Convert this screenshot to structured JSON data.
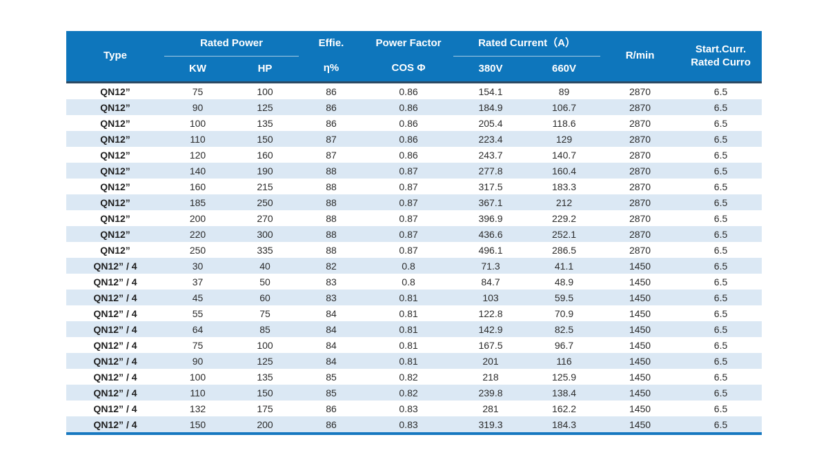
{
  "colors": {
    "header_bg": "#0e76bc",
    "header_text": "#ffffff",
    "row_stripe": "#dbe8f4",
    "header_bottom_rule": "#2d4a63",
    "table_bottom_rule": "#1778c0",
    "body_text": "#2b2b2b"
  },
  "table": {
    "header": {
      "type": "Type",
      "rated_power": "Rated Power",
      "kw": "KW",
      "hp": "HP",
      "effie": "Effie.",
      "eta": "η%",
      "power_factor": "Power Factor",
      "cos_phi": "COS Φ",
      "rated_current": "Rated Current（A）",
      "v380": "380V",
      "v660": "660V",
      "rpm": "R/min",
      "start_curr_line1": "Start.Curr.",
      "start_curr_line2": "Rated Curro"
    },
    "rows": [
      [
        "QN12”",
        "75",
        "100",
        "86",
        "0.86",
        "154.1",
        "89",
        "2870",
        "6.5"
      ],
      [
        "QN12”",
        "90",
        "125",
        "86",
        "0.86",
        "184.9",
        "106.7",
        "2870",
        "6.5"
      ],
      [
        "QN12”",
        "100",
        "135",
        "86",
        "0.86",
        "205.4",
        "118.6",
        "2870",
        "6.5"
      ],
      [
        "QN12”",
        "110",
        "150",
        "87",
        "0.86",
        "223.4",
        "129",
        "2870",
        "6.5"
      ],
      [
        "QN12”",
        "120",
        "160",
        "87",
        "0.86",
        "243.7",
        "140.7",
        "2870",
        "6.5"
      ],
      [
        "QN12”",
        "140",
        "190",
        "88",
        "0.87",
        "277.8",
        "160.4",
        "2870",
        "6.5"
      ],
      [
        "QN12”",
        "160",
        "215",
        "88",
        "0.87",
        "317.5",
        "183.3",
        "2870",
        "6.5"
      ],
      [
        "QN12”",
        "185",
        "250",
        "88",
        "0.87",
        "367.1",
        "212",
        "2870",
        "6.5"
      ],
      [
        "QN12”",
        "200",
        "270",
        "88",
        "0.87",
        "396.9",
        "229.2",
        "2870",
        "6.5"
      ],
      [
        "QN12”",
        "220",
        "300",
        "88",
        "0.87",
        "436.6",
        "252.1",
        "2870",
        "6.5"
      ],
      [
        "QN12”",
        "250",
        "335",
        "88",
        "0.87",
        "496.1",
        "286.5",
        "2870",
        "6.5"
      ],
      [
        "QN12” / 4",
        "30",
        "40",
        "82",
        "0.8",
        "71.3",
        "41.1",
        "1450",
        "6.5"
      ],
      [
        "QN12” / 4",
        "37",
        "50",
        "83",
        "0.8",
        "84.7",
        "48.9",
        "1450",
        "6.5"
      ],
      [
        "QN12” / 4",
        "45",
        "60",
        "83",
        "0.81",
        "103",
        "59.5",
        "1450",
        "6.5"
      ],
      [
        "QN12” / 4",
        "55",
        "75",
        "84",
        "0.81",
        "122.8",
        "70.9",
        "1450",
        "6.5"
      ],
      [
        "QN12” / 4",
        "64",
        "85",
        "84",
        "0.81",
        "142.9",
        "82.5",
        "1450",
        "6.5"
      ],
      [
        "QN12” / 4",
        "75",
        "100",
        "84",
        "0.81",
        "167.5",
        "96.7",
        "1450",
        "6.5"
      ],
      [
        "QN12” / 4",
        "90",
        "125",
        "84",
        "0.81",
        "201",
        "116",
        "1450",
        "6.5"
      ],
      [
        "QN12” / 4",
        "100",
        "135",
        "85",
        "0.82",
        "218",
        "125.9",
        "1450",
        "6.5"
      ],
      [
        "QN12” / 4",
        "110",
        "150",
        "85",
        "0.82",
        "239.8",
        "138.4",
        "1450",
        "6.5"
      ],
      [
        "QN12” / 4",
        "132",
        "175",
        "86",
        "0.83",
        "281",
        "162.2",
        "1450",
        "6.5"
      ],
      [
        "QN12” / 4",
        "150",
        "200",
        "86",
        "0.83",
        "319.3",
        "184.3",
        "1450",
        "6.5"
      ]
    ]
  }
}
